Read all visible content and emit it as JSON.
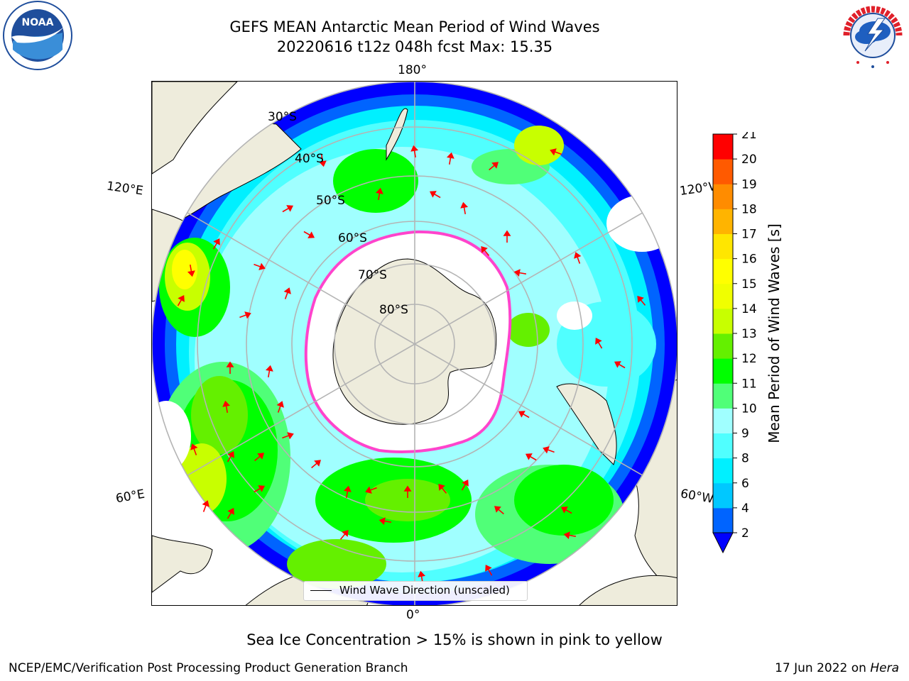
{
  "header": {
    "title_line1": "GEFS MEAN Antarctic Mean Period of Wind Waves",
    "title_line2": "20220616 t12z 048h fcst   Max: 15.35"
  },
  "logos": {
    "left": {
      "name": "noaa-logo",
      "text": "NOAA",
      "ring_text": "NATIONAL OCEANIC AND ATMOSPHERIC ADMINISTRATION · U.S. DEPARTMENT OF COMMERCE"
    },
    "right": {
      "name": "nws-logo",
      "ring_text": "NATIONAL WEATHER SERVICE"
    }
  },
  "map": {
    "projection": "south-polar-stereographic",
    "longitude_labels": {
      "top": "180°",
      "bottom": "0°",
      "left_upper": "120°E",
      "left_lower": "60°E",
      "right_upper": "120°W",
      "right_lower": "60°W"
    },
    "latitude_labels": [
      "30°S",
      "40°S",
      "50°S",
      "60°S",
      "70°S",
      "80°S"
    ],
    "legend_text": "Wind Wave Direction (unscaled)",
    "colors": {
      "land": "#eeecdc",
      "grid": "#b4b4b4",
      "arrow": "#ff0000",
      "sea_ice_edge": "#ff44cc",
      "frame": "#000000"
    }
  },
  "colorbar": {
    "title": "Mean Period of Wind Waves [s]",
    "ticks": [
      "2",
      "4",
      "6",
      "8",
      "9",
      "10",
      "11",
      "12",
      "13",
      "14",
      "15",
      "16",
      "17",
      "18",
      "19",
      "20",
      "21"
    ],
    "extend": "min",
    "extend_color": "#0000ff",
    "colors": [
      "#0064ff",
      "#00c8ff",
      "#00f0ff",
      "#50ffff",
      "#a0ffff",
      "#50ff78",
      "#00ff00",
      "#64f000",
      "#c8ff00",
      "#f0ff00",
      "#ffff00",
      "#ffe600",
      "#ffb400",
      "#ff8c00",
      "#ff5a00",
      "#ff0000"
    ]
  },
  "footer": {
    "caption": "Sea Ice Concentration > 15% is shown in pink to yellow",
    "credit": "NCEP/EMC/Verification Post Processing Product Generation Branch",
    "date": "17 Jun 2022 on ",
    "machine": "Hera"
  }
}
